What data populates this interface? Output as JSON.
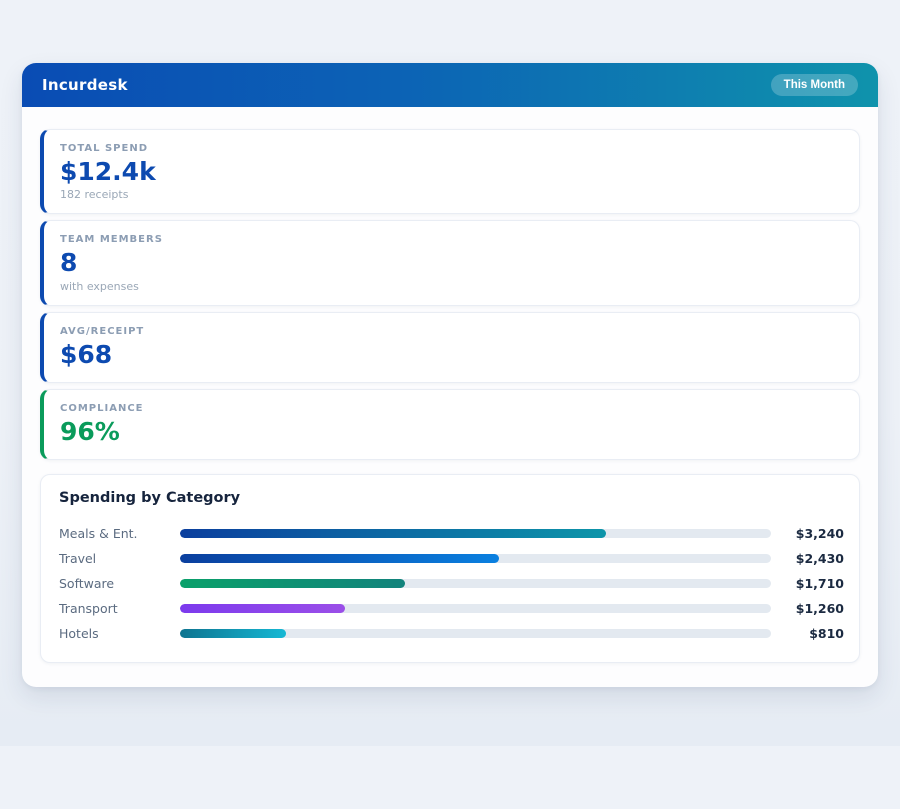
{
  "app": {
    "title": "Incurdesk",
    "period_badge": "This Month"
  },
  "theme": {
    "header_gradient_from": "#0a4cb4",
    "header_gradient_to": "#0f93ac",
    "accent_blue": "#0d4ab0",
    "accent_green": "#0a9b5b",
    "bar_track": "#e3e9f0",
    "page_background": "#edf1f7"
  },
  "stats": [
    {
      "label": "TOTAL SPEND",
      "value": "$12.4k",
      "sub": "182 receipts",
      "accent": "#0d4ab0",
      "value_color": "#0d4ab0"
    },
    {
      "label": "TEAM MEMBERS",
      "value": "8",
      "sub": "with expenses",
      "accent": "#0d4ab0",
      "value_color": "#0d4ab0"
    },
    {
      "label": "AVG/RECEIPT",
      "value": "$68",
      "sub": "",
      "accent": "#0d4ab0",
      "value_color": "#0d4ab0"
    },
    {
      "label": "COMPLIANCE",
      "value": "96%",
      "sub": "",
      "accent": "#0a9b5b",
      "value_color": "#0a9b5b"
    }
  ],
  "spending": {
    "title": "Spending by Category",
    "max_scale": 4500,
    "rows": [
      {
        "label": "Meals & Ent.",
        "value": "$3,240",
        "value_num": 3240,
        "pct": 72,
        "color_from": "#0b3f9e",
        "color_to": "#0d95a9"
      },
      {
        "label": "Travel",
        "value": "$2,430",
        "value_num": 2430,
        "pct": 54,
        "color_from": "#0b3f9e",
        "color_to": "#0a80e0"
      },
      {
        "label": "Software",
        "value": "$1,710",
        "value_num": 1710,
        "pct": 38,
        "color_from": "#0aa06a",
        "color_to": "#12837c"
      },
      {
        "label": "Transport",
        "value": "$1,260",
        "value_num": 1260,
        "pct": 28,
        "color_from": "#7c3aed",
        "color_to": "#9b4fe8"
      },
      {
        "label": "Hotels",
        "value": "$810",
        "value_num": 810,
        "pct": 18,
        "color_from": "#0e7490",
        "color_to": "#16b8d4"
      }
    ]
  }
}
